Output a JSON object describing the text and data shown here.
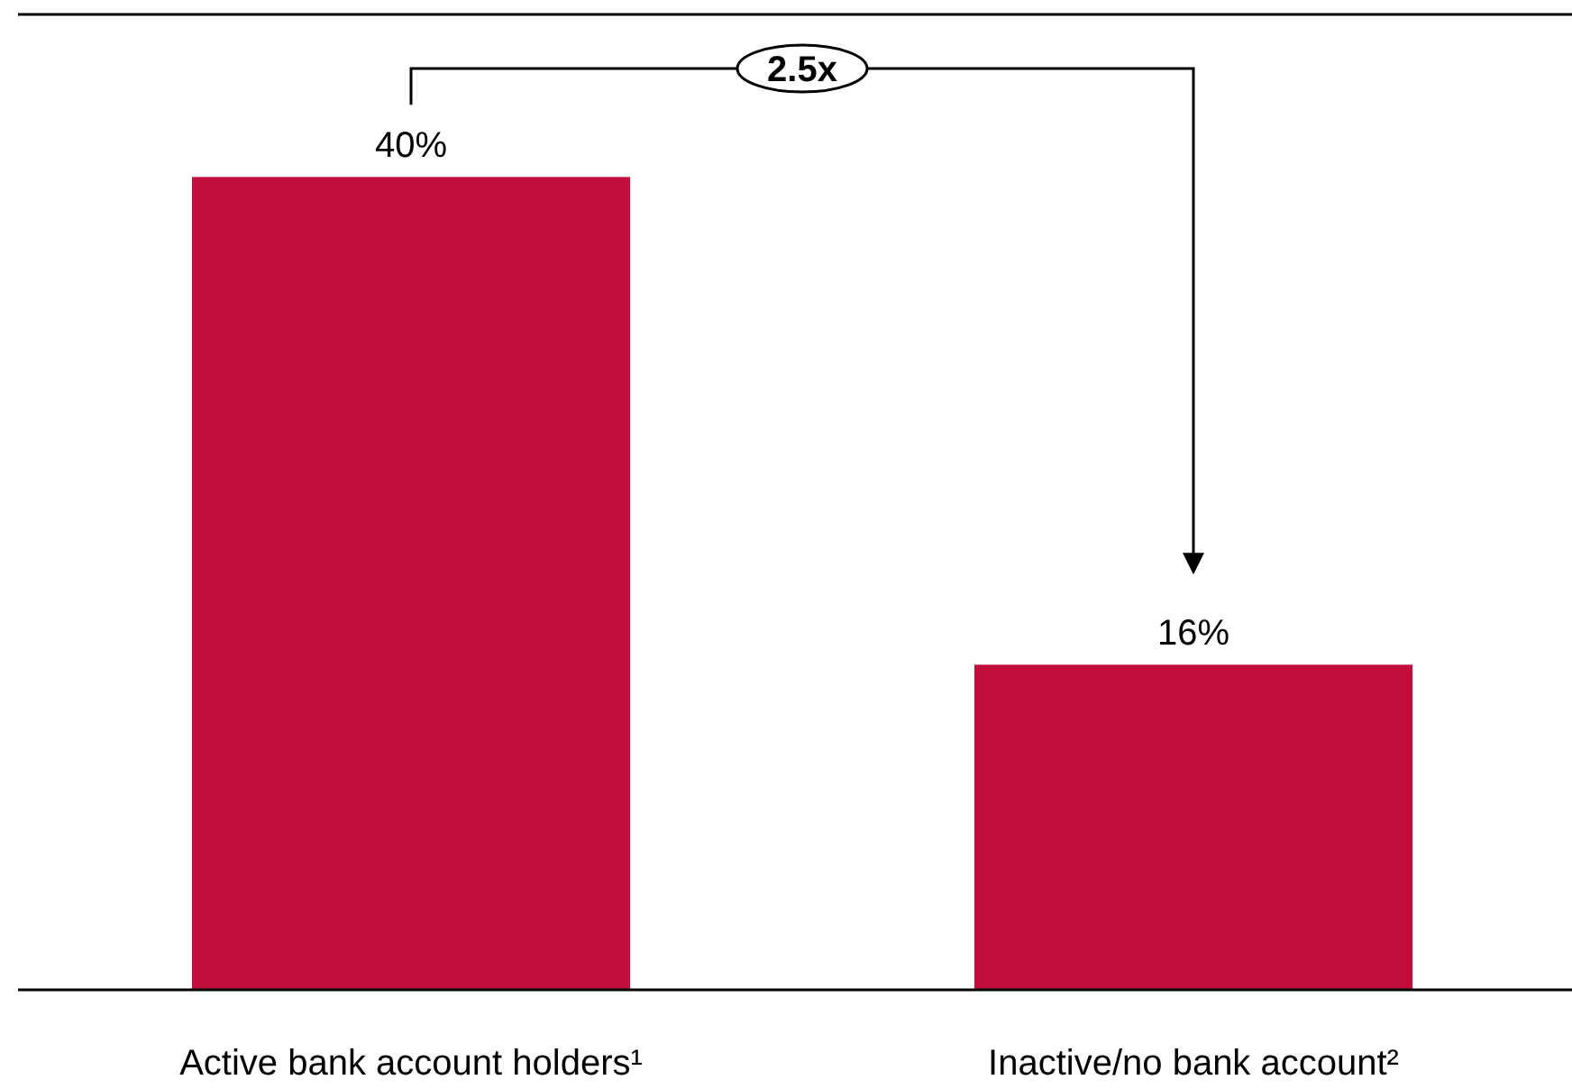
{
  "chart_data": {
    "type": "bar",
    "categories": [
      "Active bank account holders¹",
      "Inactive/no bank account²"
    ],
    "values": [
      40,
      16
    ],
    "color": "#c20e3c",
    "value_labels": [
      "40%",
      "16%"
    ],
    "annotations": [
      "2.5x"
    ]
  }
}
